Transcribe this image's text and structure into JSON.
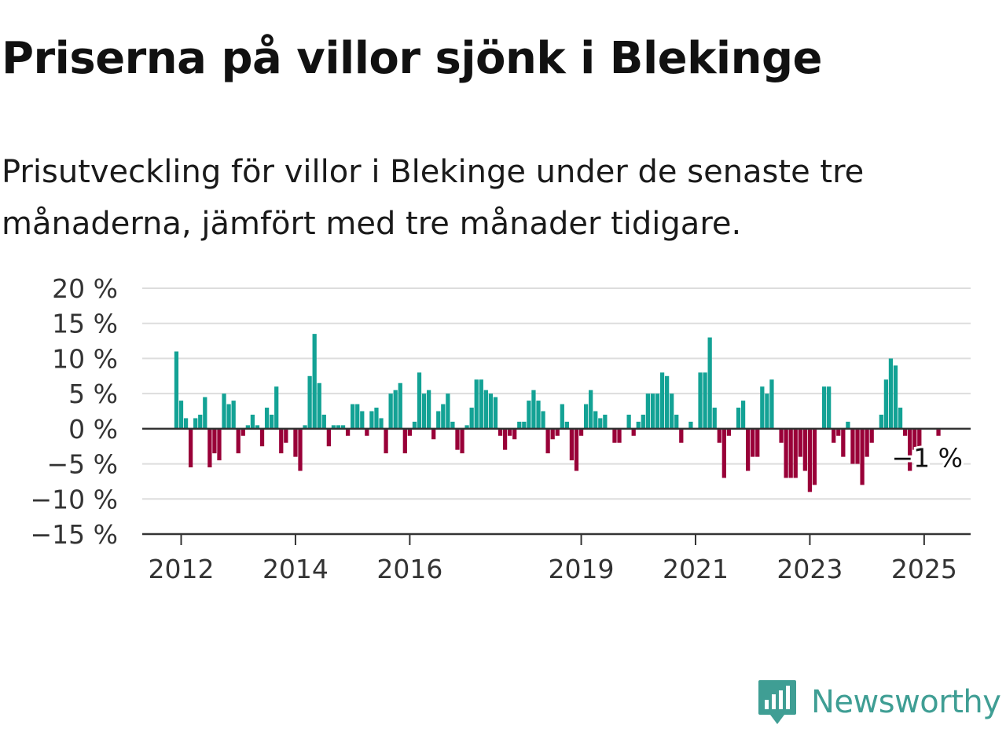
{
  "title": "Priserna på villor sjönk i Blekinge",
  "subtitle": "Prisutveckling för villor i Blekinge under de senaste tre månaderna, jämfört med tre månader tidigare.",
  "brand": "Newsworthy",
  "colors": {
    "positive": "#13a295",
    "negative": "#990038",
    "axis": "#333333",
    "grid": "#dddddd",
    "brand": "#3f9e94"
  },
  "chart_data": {
    "type": "bar",
    "start": "2011-12",
    "ylim": [
      -15,
      20
    ],
    "y_ticks": [
      20,
      15,
      10,
      5,
      0,
      -5,
      -10,
      -15
    ],
    "y_tick_labels": [
      "20 %",
      "15 %",
      "10 %",
      "5 %",
      "0 %",
      "−5 %",
      "−10 %",
      "−15 %"
    ],
    "x_ticks": [
      {
        "label": "2012",
        "date": "2012-01"
      },
      {
        "label": "2014",
        "date": "2014-01"
      },
      {
        "label": "2016",
        "date": "2016-01"
      },
      {
        "label": "2019",
        "date": "2019-01"
      },
      {
        "label": "2021",
        "date": "2021-01"
      },
      {
        "label": "2023",
        "date": "2023-01"
      },
      {
        "label": "2025",
        "date": "2025-01"
      }
    ],
    "values": [
      11,
      4,
      1.5,
      -5.5,
      1.5,
      2,
      4.5,
      -5.5,
      -3.5,
      -4.5,
      5,
      3.5,
      4,
      -3.5,
      -1,
      0.5,
      2,
      0.5,
      -2.5,
      3,
      2,
      6,
      -3.5,
      -2,
      0,
      -4,
      -6,
      0.5,
      7.5,
      13.5,
      6.5,
      2,
      -2.5,
      0.5,
      0.5,
      0.5,
      -1,
      3.5,
      3.5,
      2.5,
      -1,
      2.5,
      3,
      1.5,
      -3.5,
      5,
      5.5,
      6.5,
      -3.5,
      -1,
      1,
      8,
      5,
      5.5,
      -1.5,
      2.5,
      3.5,
      5,
      1,
      -3,
      -3.5,
      0.5,
      3,
      7,
      7,
      5.5,
      5,
      4.5,
      -1,
      -3,
      -1,
      -1.5,
      1,
      1,
      4,
      5.5,
      4,
      2.5,
      -3.5,
      -1.5,
      -1,
      3.5,
      1,
      -4.5,
      -6,
      -1,
      3.5,
      5.5,
      2.5,
      1.5,
      2,
      0,
      -2,
      -2,
      0,
      2,
      -1,
      1,
      2,
      5,
      5,
      5,
      8,
      7.5,
      5,
      2,
      -2,
      0,
      1,
      0,
      8,
      8,
      13,
      3,
      -2,
      -7,
      -1,
      0,
      3,
      4,
      -6,
      -4,
      -4,
      6,
      5,
      7,
      0,
      -2,
      -7,
      -7,
      -7,
      -4,
      -6,
      -9,
      -8,
      0,
      6,
      6,
      -2,
      -1,
      -4,
      1,
      -5,
      -5,
      -8,
      -4,
      -2,
      0,
      2,
      7,
      10,
      9,
      3,
      -1,
      -6,
      -3,
      -2.5,
      0,
      0,
      0,
      -1,
      0,
      0
    ],
    "end_label": "−1 %"
  }
}
